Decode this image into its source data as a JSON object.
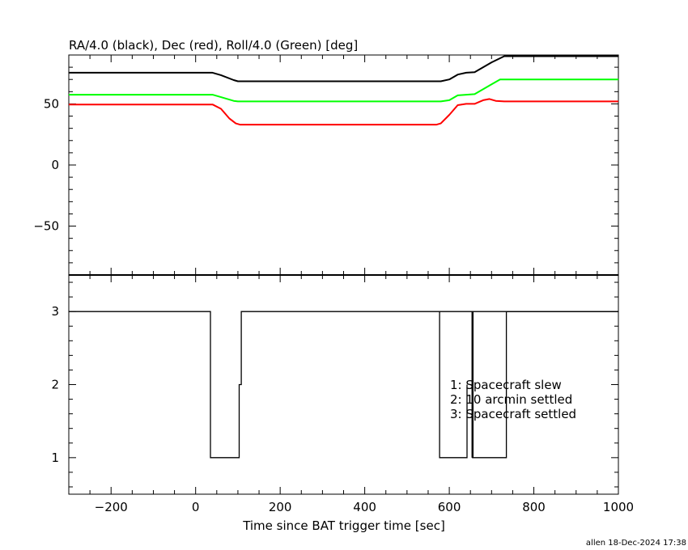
{
  "chart_data": [
    {
      "type": "line",
      "title": "RA/4.0 (black), Dec (red), Roll/4.0 (Green) [deg]",
      "xlim": [
        -300,
        1000
      ],
      "ylim": [
        -90,
        90
      ],
      "yticks": [
        "50",
        "0",
        "−50"
      ],
      "ytick_values": [
        50,
        0,
        -50
      ],
      "colors": {
        "ra": "#000000",
        "dec": "#ff0000",
        "roll": "#00ff00"
      },
      "series": [
        {
          "color": "#000000",
          "x": [
            -300,
            40,
            60,
            90,
            100,
            580,
            600,
            620,
            640,
            660,
            700,
            730,
            1000
          ],
          "y": [
            75.5,
            75.5,
            73.5,
            69.5,
            68.5,
            68.5,
            70,
            74,
            75.5,
            76,
            84,
            89,
            89
          ]
        },
        {
          "color": "#00ff00",
          "x": [
            -300,
            40,
            60,
            90,
            100,
            580,
            600,
            620,
            640,
            660,
            700,
            720,
            1000
          ],
          "y": [
            57.5,
            57.5,
            55.5,
            52.5,
            52,
            52,
            53,
            57,
            57.5,
            58,
            66,
            70,
            70
          ]
        },
        {
          "color": "#ff0000",
          "x": [
            -300,
            40,
            60,
            80,
            95,
            105,
            570,
            580,
            600,
            620,
            640,
            660,
            680,
            695,
            710,
            730,
            1000
          ],
          "y": [
            49.5,
            49.5,
            46,
            38,
            34,
            33,
            33,
            34,
            41,
            49,
            50,
            50,
            53,
            54,
            52.5,
            52,
            52
          ]
        }
      ]
    },
    {
      "type": "line",
      "xlabel": "Time since BAT trigger time [sec]",
      "xlim": [
        -300,
        1000
      ],
      "ylim": [
        0.5,
        3.5
      ],
      "xticks": [
        "−200",
        "0",
        "200",
        "400",
        "600",
        "800",
        "1000"
      ],
      "xtick_values": [
        -200,
        0,
        200,
        400,
        600,
        800,
        1000
      ],
      "yticks": [
        "3",
        "2",
        "1"
      ],
      "ytick_values": [
        3,
        2,
        1
      ],
      "legend": [
        "1: Spacecraft slew",
        "2: 10 arcmin settled",
        "3: Spacecraft settled"
      ],
      "series": [
        {
          "color": "#000000",
          "x": [
            -300,
            35,
            35,
            103,
            103,
            108,
            108,
            1000
          ],
          "y": [
            3,
            3,
            1,
            1,
            2,
            2,
            3,
            3
          ]
        },
        {
          "color": "#000000",
          "x": [
            577,
            577,
            642,
            642
          ],
          "y": [
            3,
            1,
            1,
            2
          ]
        },
        {
          "color": "#000000",
          "x": [
            655,
            655,
            655,
            724,
            724,
            735,
            735,
            1000
          ],
          "y": [
            3,
            1,
            1,
            1,
            1,
            1,
            3,
            3
          ]
        }
      ]
    }
  ],
  "footer": "allen 18-Dec-2024 17:38"
}
